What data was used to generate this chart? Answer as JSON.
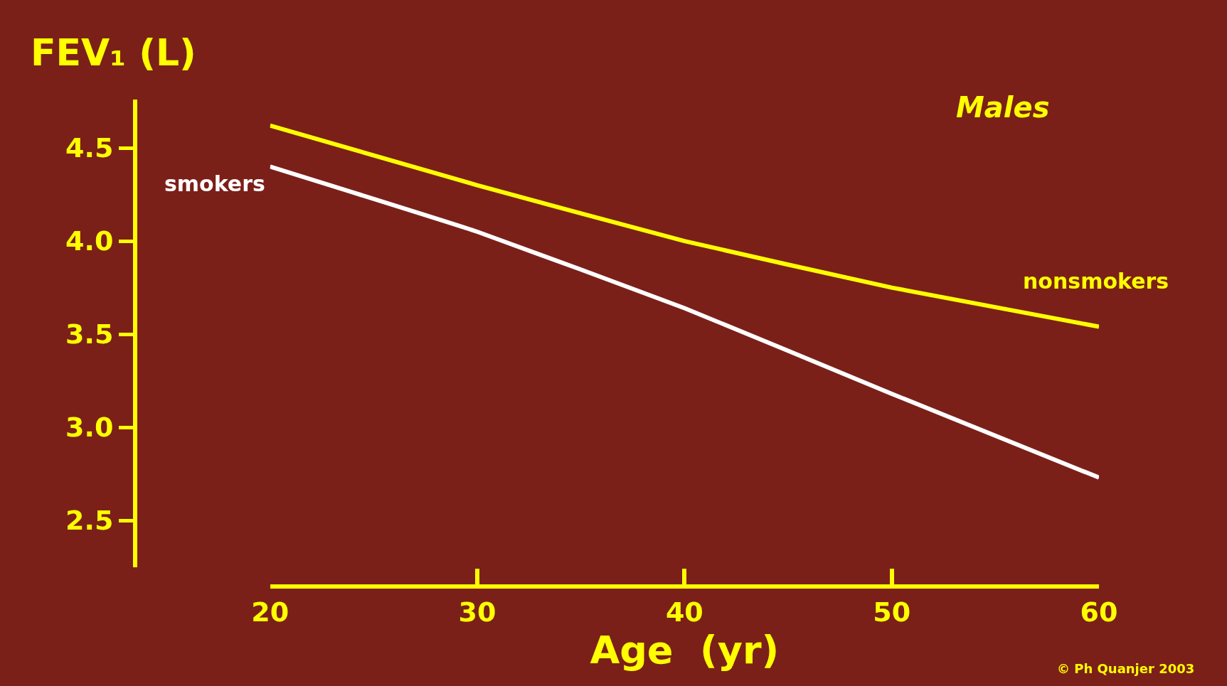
{
  "chart_data": {
    "type": "line",
    "ylabel": "FEV₁ (L)",
    "xlabel": "Age  (yr)",
    "x": [
      20,
      30,
      40,
      50,
      60
    ],
    "series": [
      {
        "name": "nonsmokers",
        "color": "#ffff00",
        "values": [
          4.62,
          4.3,
          4.0,
          3.75,
          3.54
        ]
      },
      {
        "name": "smokers",
        "color": "#ffffff",
        "values": [
          4.4,
          4.05,
          3.64,
          3.18,
          2.73
        ]
      }
    ],
    "xlim": [
      20,
      60
    ],
    "xticks": [
      20,
      30,
      40,
      50,
      60
    ],
    "ylim": [
      2.25,
      4.76
    ],
    "yticks": [
      {
        "value": 2.5,
        "label": "2.5"
      },
      {
        "value": 3,
        "label": "3.0"
      },
      {
        "value": 3.5,
        "label": "3.5"
      },
      {
        "value": 4,
        "label": "4.0"
      },
      {
        "value": 4.5,
        "label": "4.5"
      }
    ],
    "legend": false,
    "marker": "none",
    "line_style": "solid",
    "annotations": [
      "Males",
      "© Ph Quanjer 2003"
    ]
  }
}
